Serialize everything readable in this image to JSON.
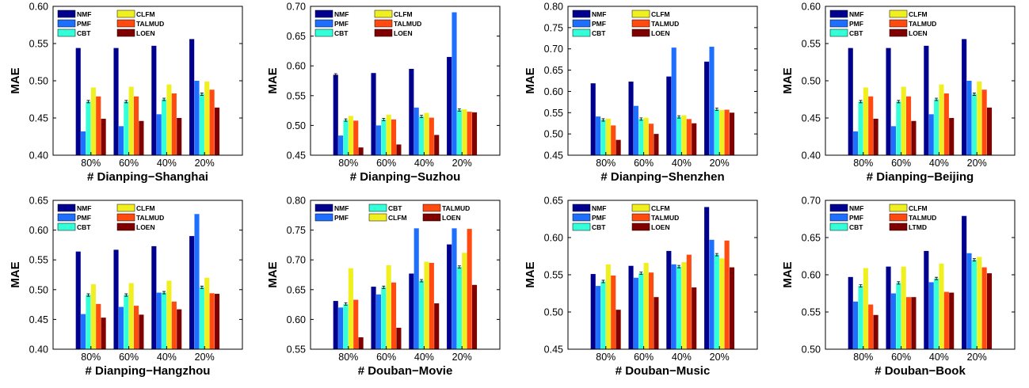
{
  "colors": {
    "NMF": "#00008f",
    "PMF": "#1f6fff",
    "CBT": "#33ffd8",
    "CLFM": "#f0f020",
    "TALMUD": "#ff4a10",
    "LOEN": "#800000",
    "LTMD": "#800000"
  },
  "chart_data": [
    {
      "type": "bar",
      "xlabel": "# Dianping−Shanghai",
      "ylabel": "MAE",
      "ylim": [
        0.4,
        0.6
      ],
      "yticks": [
        "0.40",
        "0.45",
        "0.50",
        "0.55",
        "0.60"
      ],
      "categories": [
        "80%",
        "60%",
        "40%",
        "20%"
      ],
      "legend_rows": [
        [
          "NMF",
          "CLFM"
        ],
        [
          "PMF",
          "TALMUD"
        ],
        [
          "CBT",
          "LOEN"
        ]
      ],
      "series": [
        {
          "name": "NMF",
          "values": [
            0.544,
            0.544,
            0.547,
            0.556
          ]
        },
        {
          "name": "PMF",
          "values": [
            0.432,
            0.439,
            0.455,
            0.5
          ]
        },
        {
          "name": "CBT",
          "values": [
            0.472,
            0.472,
            0.475,
            0.482
          ]
        },
        {
          "name": "CLFM",
          "values": [
            0.491,
            0.492,
            0.495,
            0.499
          ]
        },
        {
          "name": "TALMUD",
          "values": [
            0.479,
            0.479,
            0.483,
            0.488
          ]
        },
        {
          "name": "LOEN",
          "values": [
            0.449,
            0.446,
            0.45,
            0.464
          ]
        }
      ]
    },
    {
      "type": "bar",
      "xlabel": "# Dianping−Suzhou",
      "ylabel": "MAE",
      "ylim": [
        0.45,
        0.7
      ],
      "yticks": [
        "0.45",
        "0.50",
        "0.55",
        "0.60",
        "0.65",
        "0.70"
      ],
      "categories": [
        "80%",
        "60%",
        "40%",
        "20%"
      ],
      "legend_rows": [
        [
          "NMF",
          "CLFM"
        ],
        [
          "PMF",
          "TALMUD"
        ],
        [
          "CBT",
          "LOEN"
        ]
      ],
      "series": [
        {
          "name": "NMF",
          "values": [
            0.585,
            0.588,
            0.595,
            0.615
          ]
        },
        {
          "name": "PMF",
          "values": [
            0.483,
            0.5,
            0.53,
            0.69
          ]
        },
        {
          "name": "CBT",
          "values": [
            0.509,
            0.51,
            0.515,
            0.526
          ]
        },
        {
          "name": "CLFM",
          "values": [
            0.516,
            0.518,
            0.521,
            0.527
          ]
        },
        {
          "name": "TALMUD",
          "values": [
            0.508,
            0.51,
            0.513,
            0.523
          ]
        },
        {
          "name": "LOEN",
          "values": [
            0.463,
            0.468,
            0.484,
            0.522
          ]
        }
      ]
    },
    {
      "type": "bar",
      "xlabel": "# Dianping−Shenzhen",
      "ylabel": "MAE",
      "ylim": [
        0.45,
        0.8
      ],
      "yticks": [
        "0.45",
        "0.50",
        "0.55",
        "0.60",
        "0.65",
        "0.70",
        "0.75",
        "0.80"
      ],
      "categories": [
        "80%",
        "60%",
        "40%",
        "20%"
      ],
      "legend_rows": [
        [
          "NMF",
          "CLFM"
        ],
        [
          "PMF",
          "TALMUD"
        ],
        [
          "CBT",
          "LOEN"
        ]
      ],
      "series": [
        {
          "name": "NMF",
          "values": [
            0.619,
            0.623,
            0.635,
            0.67
          ]
        },
        {
          "name": "PMF",
          "values": [
            0.541,
            0.566,
            0.703,
            0.705
          ]
        },
        {
          "name": "CBT",
          "values": [
            0.533,
            0.535,
            0.54,
            0.558
          ]
        },
        {
          "name": "CLFM",
          "values": [
            0.536,
            0.538,
            0.544,
            0.556
          ]
        },
        {
          "name": "TALMUD",
          "values": [
            0.52,
            0.524,
            0.535,
            0.557
          ]
        },
        {
          "name": "LOEN",
          "values": [
            0.486,
            0.5,
            0.525,
            0.55
          ]
        }
      ]
    },
    {
      "type": "bar",
      "xlabel": "# Dianping−Beijing",
      "ylabel": "MAE",
      "ylim": [
        0.4,
        0.6
      ],
      "yticks": [
        "0.40",
        "0.45",
        "0.50",
        "0.55",
        "0.60"
      ],
      "categories": [
        "80%",
        "60%",
        "40%",
        "20%"
      ],
      "legend_rows": [
        [
          "NMF",
          "CLFM"
        ],
        [
          "PMF",
          "TALMUD"
        ],
        [
          "CBT",
          "LOEN"
        ]
      ],
      "series": [
        {
          "name": "NMF",
          "values": [
            0.544,
            0.544,
            0.547,
            0.556
          ]
        },
        {
          "name": "PMF",
          "values": [
            0.432,
            0.439,
            0.455,
            0.5
          ]
        },
        {
          "name": "CBT",
          "values": [
            0.472,
            0.472,
            0.475,
            0.482
          ]
        },
        {
          "name": "CLFM",
          "values": [
            0.491,
            0.492,
            0.495,
            0.499
          ]
        },
        {
          "name": "TALMUD",
          "values": [
            0.479,
            0.479,
            0.483,
            0.488
          ]
        },
        {
          "name": "LOEN",
          "values": [
            0.449,
            0.446,
            0.45,
            0.464
          ]
        }
      ]
    },
    {
      "type": "bar",
      "xlabel": "# Dianping−Hangzhou",
      "ylabel": "MAE",
      "ylim": [
        0.4,
        0.65
      ],
      "yticks": [
        "0.40",
        "0.45",
        "0.50",
        "0.55",
        "0.60",
        "0.65"
      ],
      "categories": [
        "80%",
        "60%",
        "40%",
        "20%"
      ],
      "legend_rows": [
        [
          "NMF",
          "CLFM"
        ],
        [
          "PMF",
          "TALMUD"
        ],
        [
          "CBT",
          "LOEN"
        ]
      ],
      "series": [
        {
          "name": "NMF",
          "values": [
            0.564,
            0.567,
            0.573,
            0.59
          ]
        },
        {
          "name": "PMF",
          "values": [
            0.459,
            0.471,
            0.495,
            0.627
          ]
        },
        {
          "name": "CBT",
          "values": [
            0.491,
            0.491,
            0.495,
            0.504
          ]
        },
        {
          "name": "CLFM",
          "values": [
            0.509,
            0.511,
            0.515,
            0.52
          ]
        },
        {
          "name": "TALMUD",
          "values": [
            0.476,
            0.473,
            0.48,
            0.494
          ]
        },
        {
          "name": "LOEN",
          "values": [
            0.453,
            0.458,
            0.467,
            0.493
          ]
        }
      ]
    },
    {
      "type": "bar",
      "xlabel": "# Douban−Movie",
      "ylabel": "MAE",
      "ylim": [
        0.55,
        0.8
      ],
      "yticks": [
        "0.55",
        "0.60",
        "0.65",
        "0.70",
        "0.75",
        "0.80"
      ],
      "categories": [
        "80%",
        "60%",
        "40%",
        "20%"
      ],
      "legend_rows": [
        [
          "NMF",
          "CBT",
          "TALMUD"
        ],
        [
          "PMF",
          "CLFM",
          "LOEN"
        ]
      ],
      "series": [
        {
          "name": "NMF",
          "values": [
            0.631,
            0.655,
            0.677,
            0.726
          ]
        },
        {
          "name": "PMF",
          "values": [
            0.62,
            0.642,
            0.753,
            0.753
          ]
        },
        {
          "name": "CBT",
          "values": [
            0.626,
            0.654,
            0.665,
            0.688
          ]
        },
        {
          "name": "CLFM",
          "values": [
            0.686,
            0.691,
            0.697,
            0.712
          ]
        },
        {
          "name": "TALMUD",
          "values": [
            0.633,
            0.662,
            0.695,
            0.752
          ]
        },
        {
          "name": "LOEN",
          "values": [
            0.57,
            0.586,
            0.627,
            0.658
          ]
        }
      ]
    },
    {
      "type": "bar",
      "xlabel": "# Douban−Music",
      "ylabel": "MAE",
      "ylim": [
        0.45,
        0.65
      ],
      "yticks": [
        "0.45",
        "0.50",
        "0.55",
        "0.60",
        "0.65"
      ],
      "categories": [
        "80%",
        "60%",
        "40%",
        "20%"
      ],
      "legend_rows": [
        [
          "NMF",
          "CLFM"
        ],
        [
          "PMF",
          "TALMUD"
        ],
        [
          "CBT",
          "LOEN"
        ]
      ],
      "series": [
        {
          "name": "NMF",
          "values": [
            0.551,
            0.562,
            0.582,
            0.641
          ]
        },
        {
          "name": "PMF",
          "values": [
            0.535,
            0.546,
            0.564,
            0.597
          ]
        },
        {
          "name": "CBT",
          "values": [
            0.541,
            0.552,
            0.561,
            0.577
          ]
        },
        {
          "name": "CLFM",
          "values": [
            0.564,
            0.566,
            0.567,
            0.572
          ]
        },
        {
          "name": "TALMUD",
          "values": [
            0.549,
            0.553,
            0.577,
            0.596
          ]
        },
        {
          "name": "LOEN",
          "values": [
            0.503,
            0.52,
            0.533,
            0.56
          ]
        }
      ]
    },
    {
      "type": "bar",
      "xlabel": "# Douban−Book",
      "ylabel": "MAE",
      "ylim": [
        0.5,
        0.7
      ],
      "yticks": [
        "0.50",
        "0.55",
        "0.60",
        "0.65",
        "0.70"
      ],
      "categories": [
        "80%",
        "60%",
        "40%",
        "20%"
      ],
      "legend_rows": [
        [
          "NMF",
          "CLFM"
        ],
        [
          "PMF",
          "TALMUD"
        ],
        [
          "CBT",
          "LTMD"
        ]
      ],
      "series": [
        {
          "name": "NMF",
          "values": [
            0.597,
            0.611,
            0.632,
            0.679
          ]
        },
        {
          "name": "PMF",
          "values": [
            0.564,
            0.575,
            0.59,
            0.629
          ]
        },
        {
          "name": "CBT",
          "values": [
            0.585,
            0.589,
            0.595,
            0.62
          ]
        },
        {
          "name": "CLFM",
          "values": [
            0.609,
            0.611,
            0.615,
            0.624
          ]
        },
        {
          "name": "TALMUD",
          "values": [
            0.56,
            0.57,
            0.577,
            0.61
          ]
        },
        {
          "name": "LTMD",
          "values": [
            0.546,
            0.57,
            0.576,
            0.602
          ]
        }
      ]
    }
  ]
}
